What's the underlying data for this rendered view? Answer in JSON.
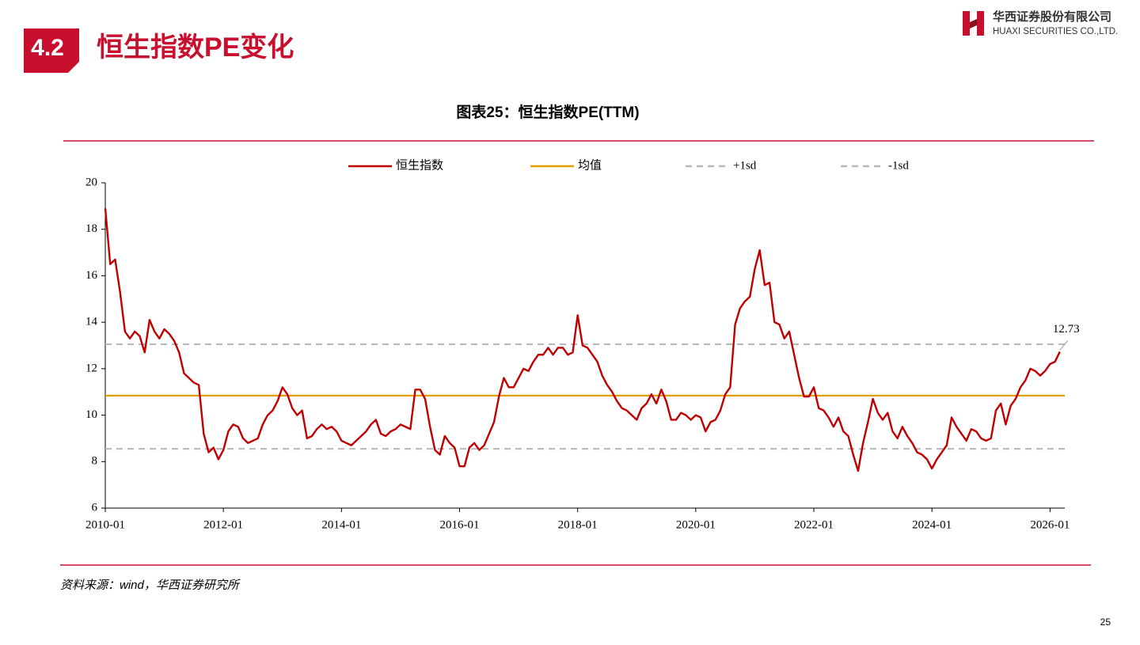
{
  "header": {
    "section": "4.2",
    "title": "恒生指数PE变化"
  },
  "logo": {
    "name_cn": "华西证券股份有限公司",
    "name_en": "HUAXI SECURITIES CO.,LTD."
  },
  "chart_data": {
    "type": "line",
    "title": "图表25：恒生指数PE(TTM)",
    "x": [
      "2010-01",
      "2010-02",
      "2010-03",
      "2010-04",
      "2010-05",
      "2010-06",
      "2010-07",
      "2010-08",
      "2010-09",
      "2010-10",
      "2010-11",
      "2010-12",
      "2011-01",
      "2011-02",
      "2011-03",
      "2011-04",
      "2011-05",
      "2011-06",
      "2011-07",
      "2011-08",
      "2011-09",
      "2011-10",
      "2011-11",
      "2011-12",
      "2012-01",
      "2012-02",
      "2012-03",
      "2012-04",
      "2012-05",
      "2012-06",
      "2012-07",
      "2012-08",
      "2012-09",
      "2012-10",
      "2012-11",
      "2012-12",
      "2013-01",
      "2013-02",
      "2013-03",
      "2013-04",
      "2013-05",
      "2013-06",
      "2013-07",
      "2013-08",
      "2013-09",
      "2013-10",
      "2013-11",
      "2013-12",
      "2014-01",
      "2014-02",
      "2014-03",
      "2014-04",
      "2014-05",
      "2014-06",
      "2014-07",
      "2014-08",
      "2014-09",
      "2014-10",
      "2014-11",
      "2014-12",
      "2015-01",
      "2015-02",
      "2015-03",
      "2015-04",
      "2015-05",
      "2015-06",
      "2015-07",
      "2015-08",
      "2015-09",
      "2015-10",
      "2015-11",
      "2015-12",
      "2016-01",
      "2016-02",
      "2016-03",
      "2016-04",
      "2016-05",
      "2016-06",
      "2016-07",
      "2016-08",
      "2016-09",
      "2016-10",
      "2016-11",
      "2016-12",
      "2017-01",
      "2017-02",
      "2017-03",
      "2017-04",
      "2017-05",
      "2017-06",
      "2017-07",
      "2017-08",
      "2017-09",
      "2017-10",
      "2017-11",
      "2017-12",
      "2018-01",
      "2018-02",
      "2018-03",
      "2018-04",
      "2018-05",
      "2018-06",
      "2018-07",
      "2018-08",
      "2018-09",
      "2018-10",
      "2018-11",
      "2018-12",
      "2019-01",
      "2019-02",
      "2019-03",
      "2019-04",
      "2019-05",
      "2019-06",
      "2019-07",
      "2019-08",
      "2019-09",
      "2019-10",
      "2019-11",
      "2019-12",
      "2020-01",
      "2020-02",
      "2020-03",
      "2020-04",
      "2020-05",
      "2020-06",
      "2020-07",
      "2020-08",
      "2020-09",
      "2020-10",
      "2020-11",
      "2020-12",
      "2021-01",
      "2021-02",
      "2021-03",
      "2021-04",
      "2021-05",
      "2021-06",
      "2021-07",
      "2021-08",
      "2021-09",
      "2021-10",
      "2021-11",
      "2021-12",
      "2022-01",
      "2022-02",
      "2022-03",
      "2022-04",
      "2022-05",
      "2022-06",
      "2022-07",
      "2022-08",
      "2022-09",
      "2022-10",
      "2022-11",
      "2022-12",
      "2023-01",
      "2023-02",
      "2023-03",
      "2023-04",
      "2023-05",
      "2023-06",
      "2023-07",
      "2023-08",
      "2023-09",
      "2023-10",
      "2023-11",
      "2023-12",
      "2024-01",
      "2024-02",
      "2024-03",
      "2024-04",
      "2024-05",
      "2024-06",
      "2024-07",
      "2024-08",
      "2024-09",
      "2024-10",
      "2024-11",
      "2024-12",
      "2025-01",
      "2025-02",
      "2025-03",
      "2025-04",
      "2025-05",
      "2025-06",
      "2025-07",
      "2025-08",
      "2025-09",
      "2025-10",
      "2025-11",
      "2025-12",
      "2026-01",
      "2026-02",
      "2026-03"
    ],
    "series": [
      {
        "name": "恒生指数",
        "color": "#c00000",
        "values": [
          18.9,
          16.5,
          16.7,
          15.3,
          13.6,
          13.3,
          13.6,
          13.4,
          12.7,
          14.1,
          13.6,
          13.3,
          13.7,
          13.5,
          13.2,
          12.7,
          11.8,
          11.6,
          11.4,
          11.3,
          9.2,
          8.4,
          8.6,
          8.1,
          8.5,
          9.3,
          9.6,
          9.5,
          9.0,
          8.8,
          8.9,
          9.0,
          9.6,
          10.0,
          10.2,
          10.6,
          11.2,
          10.9,
          10.3,
          10.0,
          10.2,
          9.0,
          9.1,
          9.4,
          9.6,
          9.4,
          9.5,
          9.3,
          8.9,
          8.8,
          8.7,
          8.9,
          9.1,
          9.3,
          9.6,
          9.8,
          9.2,
          9.1,
          9.3,
          9.4,
          9.6,
          9.5,
          9.4,
          11.1,
          11.1,
          10.7,
          9.5,
          8.5,
          8.3,
          9.1,
          8.8,
          8.6,
          7.8,
          7.8,
          8.6,
          8.8,
          8.5,
          8.7,
          9.2,
          9.7,
          10.8,
          11.6,
          11.2,
          11.2,
          11.6,
          12.0,
          11.9,
          12.3,
          12.6,
          12.6,
          12.9,
          12.6,
          12.9,
          12.9,
          12.6,
          12.7,
          14.3,
          13.0,
          12.9,
          12.6,
          12.3,
          11.7,
          11.3,
          11.0,
          10.6,
          10.3,
          10.2,
          10.0,
          9.8,
          10.3,
          10.5,
          10.9,
          10.5,
          11.1,
          10.6,
          9.8,
          9.8,
          10.1,
          10.0,
          9.8,
          10.0,
          9.9,
          9.3,
          9.7,
          9.8,
          10.2,
          10.9,
          11.2,
          13.9,
          14.6,
          14.9,
          15.1,
          16.3,
          17.1,
          15.6,
          15.7,
          14.0,
          13.9,
          13.3,
          13.6,
          12.6,
          11.6,
          10.8,
          10.8,
          11.2,
          10.3,
          10.2,
          9.9,
          9.5,
          9.9,
          9.3,
          9.1,
          8.3,
          7.6,
          8.8,
          9.7,
          10.7,
          10.1,
          9.8,
          10.1,
          9.3,
          9.0,
          9.5,
          9.1,
          8.8,
          8.4,
          8.3,
          8.1,
          7.7,
          8.1,
          8.4,
          8.7,
          9.9,
          9.5,
          9.2,
          8.9,
          9.4,
          9.3,
          9.0,
          8.9,
          9.0,
          10.2,
          10.5,
          9.6,
          10.4,
          10.7,
          11.2,
          11.5,
          12.0,
          11.9,
          11.7,
          11.9,
          12.2,
          12.3,
          12.73
        ]
      }
    ],
    "reference_lines": [
      {
        "name": "均值",
        "color": "#e0a000",
        "value": 10.84,
        "dashed": false
      },
      {
        "name": "+1sd",
        "color": "#b8b8b8",
        "value": 13.05,
        "dashed": true
      },
      {
        "name": "-1sd",
        "color": "#b8b8b8",
        "value": 8.55,
        "dashed": true
      }
    ],
    "annotation": "12.73",
    "xlim": [
      "2010-01",
      "2026-04"
    ],
    "xticks": [
      "2010-01",
      "2012-01",
      "2014-01",
      "2016-01",
      "2018-01",
      "2020-01",
      "2022-01",
      "2024-01",
      "2026-01"
    ],
    "ylim": [
      6,
      20
    ],
    "yticks": [
      6,
      8,
      10,
      12,
      14,
      16,
      18,
      20
    ]
  },
  "source": "资料来源：wind，华西证券研究所",
  "page_number": "25"
}
